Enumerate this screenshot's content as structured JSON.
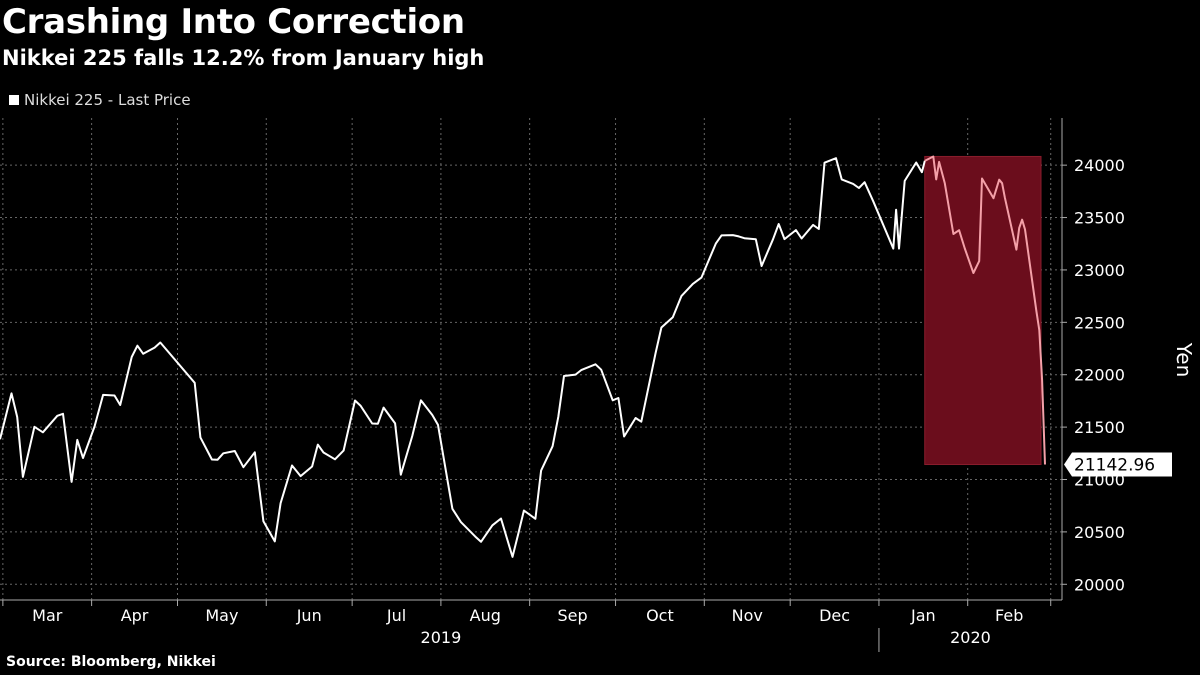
{
  "chart_data": {
    "type": "line",
    "title": "Crashing Into Correction",
    "subtitle": "Nikkei 225 falls 12.2% from January high",
    "legend": [
      "Nikkei 225 - Last Price"
    ],
    "ylabel": "Yen",
    "ylim": [
      19850,
      24450
    ],
    "yticks": [
      20000,
      20500,
      21000,
      21500,
      22000,
      22500,
      23000,
      23500,
      24000
    ],
    "ytick_labels": [
      "20000",
      "20500",
      "21000",
      "21500",
      "22000",
      "22500",
      "23000",
      "23500",
      "24000"
    ],
    "month_labels": [
      "Mar",
      "Apr",
      "May",
      "Jun",
      "Jul",
      "Aug",
      "Sep",
      "Oct",
      "Nov",
      "Dec",
      "Jan",
      "Feb"
    ],
    "year_labels": [
      "2019",
      "2020"
    ],
    "last_value_label": "21142.96",
    "highlight": {
      "from": "2020-01-17",
      "to": "2020-02-28",
      "ymin": 21142.96,
      "ymax": 24083
    },
    "series": [
      {
        "name": "Nikkei 225 - Last Price",
        "color": "#ffffff",
        "highlight_color": "#f4a0a8",
        "points": [
          [
            "2019-02-28",
            21385
          ],
          [
            "2019-03-04",
            21822
          ],
          [
            "2019-03-06",
            21596
          ],
          [
            "2019-03-08",
            21025
          ],
          [
            "2019-03-12",
            21503
          ],
          [
            "2019-03-15",
            21450
          ],
          [
            "2019-03-20",
            21608
          ],
          [
            "2019-03-22",
            21627
          ],
          [
            "2019-03-25",
            20977
          ],
          [
            "2019-03-27",
            21378
          ],
          [
            "2019-03-29",
            21205
          ],
          [
            "2019-04-02",
            21505
          ],
          [
            "2019-04-05",
            21807
          ],
          [
            "2019-04-09",
            21802
          ],
          [
            "2019-04-11",
            21711
          ],
          [
            "2019-04-15",
            22169
          ],
          [
            "2019-04-17",
            22277
          ],
          [
            "2019-04-19",
            22200
          ],
          [
            "2019-04-23",
            22259
          ],
          [
            "2019-04-25",
            22307
          ],
          [
            "2019-05-07",
            21923
          ],
          [
            "2019-05-09",
            21402
          ],
          [
            "2019-05-13",
            21191
          ],
          [
            "2019-05-15",
            21189
          ],
          [
            "2019-05-17",
            21250
          ],
          [
            "2019-05-21",
            21272
          ],
          [
            "2019-05-24",
            21117
          ],
          [
            "2019-05-28",
            21260
          ],
          [
            "2019-05-31",
            20601
          ],
          [
            "2019-06-04",
            20409
          ],
          [
            "2019-06-06",
            20774
          ],
          [
            "2019-06-10",
            21134
          ],
          [
            "2019-06-13",
            21032
          ],
          [
            "2019-06-17",
            21124
          ],
          [
            "2019-06-19",
            21333
          ],
          [
            "2019-06-21",
            21258
          ],
          [
            "2019-06-25",
            21193
          ],
          [
            "2019-06-28",
            21276
          ],
          [
            "2019-07-02",
            21754
          ],
          [
            "2019-07-04",
            21702
          ],
          [
            "2019-07-08",
            21534
          ],
          [
            "2019-07-10",
            21533
          ],
          [
            "2019-07-12",
            21686
          ],
          [
            "2019-07-16",
            21535
          ],
          [
            "2019-07-18",
            21046
          ],
          [
            "2019-07-22",
            21416
          ],
          [
            "2019-07-25",
            21756
          ],
          [
            "2019-07-29",
            21616
          ],
          [
            "2019-07-31",
            21521
          ],
          [
            "2019-08-05",
            20720
          ],
          [
            "2019-08-08",
            20593
          ],
          [
            "2019-08-13",
            20455
          ],
          [
            "2019-08-15",
            20405
          ],
          [
            "2019-08-19",
            20563
          ],
          [
            "2019-08-22",
            20628
          ],
          [
            "2019-08-26",
            20261
          ],
          [
            "2019-08-28",
            20479
          ],
          [
            "2019-08-30",
            20704
          ],
          [
            "2019-09-03",
            20625
          ],
          [
            "2019-09-05",
            21085
          ],
          [
            "2019-09-09",
            21318
          ],
          [
            "2019-09-11",
            21598
          ],
          [
            "2019-09-13",
            21988
          ],
          [
            "2019-09-17",
            22001
          ],
          [
            "2019-09-19",
            22044
          ],
          [
            "2019-09-24",
            22099
          ],
          [
            "2019-09-26",
            22048
          ],
          [
            "2019-09-30",
            21756
          ],
          [
            "2019-10-02",
            21778
          ],
          [
            "2019-10-04",
            21410
          ],
          [
            "2019-10-08",
            21587
          ],
          [
            "2019-10-10",
            21552
          ],
          [
            "2019-10-15",
            22207
          ],
          [
            "2019-10-17",
            22451
          ],
          [
            "2019-10-21",
            22549
          ],
          [
            "2019-10-24",
            22750
          ],
          [
            "2019-10-28",
            22867
          ],
          [
            "2019-10-31",
            22927
          ],
          [
            "2019-11-05",
            23251
          ],
          [
            "2019-11-07",
            23330
          ],
          [
            "2019-11-11",
            23332
          ],
          [
            "2019-11-13",
            23320
          ],
          [
            "2019-11-15",
            23303
          ],
          [
            "2019-11-19",
            23293
          ],
          [
            "2019-11-21",
            23038
          ],
          [
            "2019-11-25",
            23292
          ],
          [
            "2019-11-27",
            23438
          ],
          [
            "2019-11-29",
            23294
          ],
          [
            "2019-12-03",
            23380
          ],
          [
            "2019-12-05",
            23300
          ],
          [
            "2019-12-09",
            23430
          ],
          [
            "2019-12-11",
            23391
          ],
          [
            "2019-12-13",
            24023
          ],
          [
            "2019-12-17",
            24066
          ],
          [
            "2019-12-19",
            23864
          ],
          [
            "2019-12-23",
            23821
          ],
          [
            "2019-12-25",
            23782
          ],
          [
            "2019-12-27",
            23837
          ],
          [
            "2019-12-30",
            23656
          ],
          [
            "2020-01-06",
            23204
          ],
          [
            "2020-01-07",
            23575
          ],
          [
            "2020-01-08",
            23204
          ],
          [
            "2020-01-10",
            23850
          ],
          [
            "2020-01-14",
            24025
          ],
          [
            "2020-01-16",
            23933
          ],
          [
            "2020-01-17",
            24041
          ],
          [
            "2020-01-20",
            24083
          ],
          [
            "2020-01-21",
            23864
          ],
          [
            "2020-01-22",
            24031
          ],
          [
            "2020-01-24",
            23827
          ],
          [
            "2020-01-27",
            23343
          ],
          [
            "2020-01-29",
            23379
          ],
          [
            "2020-01-31",
            23205
          ],
          [
            "2020-02-03",
            22971
          ],
          [
            "2020-02-05",
            23084
          ],
          [
            "2020-02-06",
            23873
          ],
          [
            "2020-02-10",
            23685
          ],
          [
            "2020-02-12",
            23861
          ],
          [
            "2020-02-13",
            23828
          ],
          [
            "2020-02-14",
            23688
          ],
          [
            "2020-02-18",
            23194
          ],
          [
            "2020-02-19",
            23400
          ],
          [
            "2020-02-20",
            23479
          ],
          [
            "2020-02-21",
            23387
          ],
          [
            "2020-02-25",
            22606
          ],
          [
            "2020-02-26",
            22426
          ],
          [
            "2020-02-27",
            21948
          ],
          [
            "2020-02-28",
            21142.96
          ]
        ]
      }
    ]
  },
  "footer": {
    "source": "Source: Bloomberg, Nikkei"
  }
}
